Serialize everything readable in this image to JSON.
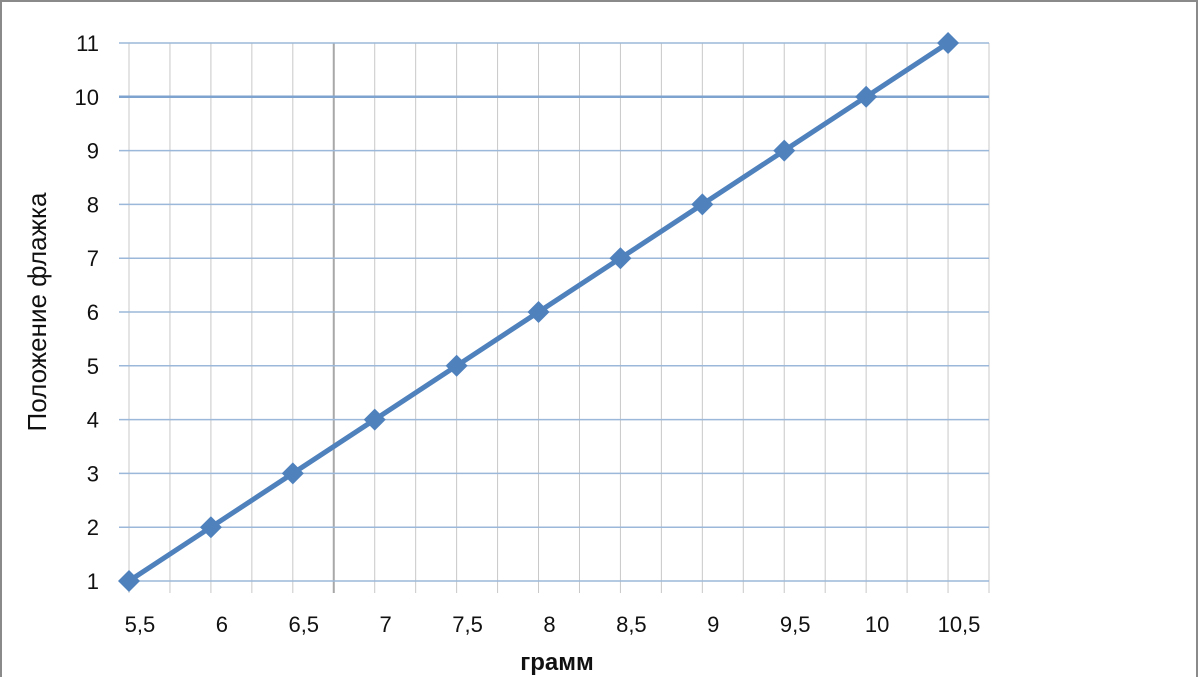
{
  "chart_data": {
    "type": "line",
    "title": "",
    "xlabel": "грамм",
    "ylabel": "Положение флажка",
    "xlim": [
      5.25,
      10.5
    ],
    "ylim": [
      1,
      11
    ],
    "x_ticks": [
      5.5,
      6,
      6.5,
      7,
      7.5,
      8,
      8.5,
      9,
      9.5,
      10,
      10.5
    ],
    "x_tick_labels": [
      "5,5",
      "6",
      "6,5",
      "7",
      "7,5",
      "8",
      "8,5",
      "9",
      "9,5",
      "10",
      "10,5"
    ],
    "y_ticks": [
      1,
      2,
      3,
      4,
      5,
      6,
      7,
      8,
      9,
      10,
      11
    ],
    "y_tick_labels": [
      "1",
      "2",
      "3",
      "4",
      "5",
      "6",
      "7",
      "8",
      "9",
      "10",
      "11"
    ],
    "grid": true,
    "legend": "none",
    "series": [
      {
        "color": "#4f81bd",
        "marker": "diamond",
        "x": [
          5.25,
          5.75,
          6.25,
          6.75,
          7.25,
          7.75,
          8.25,
          8.75,
          9.25,
          9.75,
          10.25
        ],
        "y": [
          1,
          2,
          3,
          4,
          5,
          6,
          7,
          8,
          9,
          10,
          11
        ]
      }
    ],
    "colors": {
      "line": "#4f81bd",
      "grid_horizontal": "#9bb7d9",
      "grid_vertical": "#c8c8c8",
      "text": "#111111"
    }
  }
}
